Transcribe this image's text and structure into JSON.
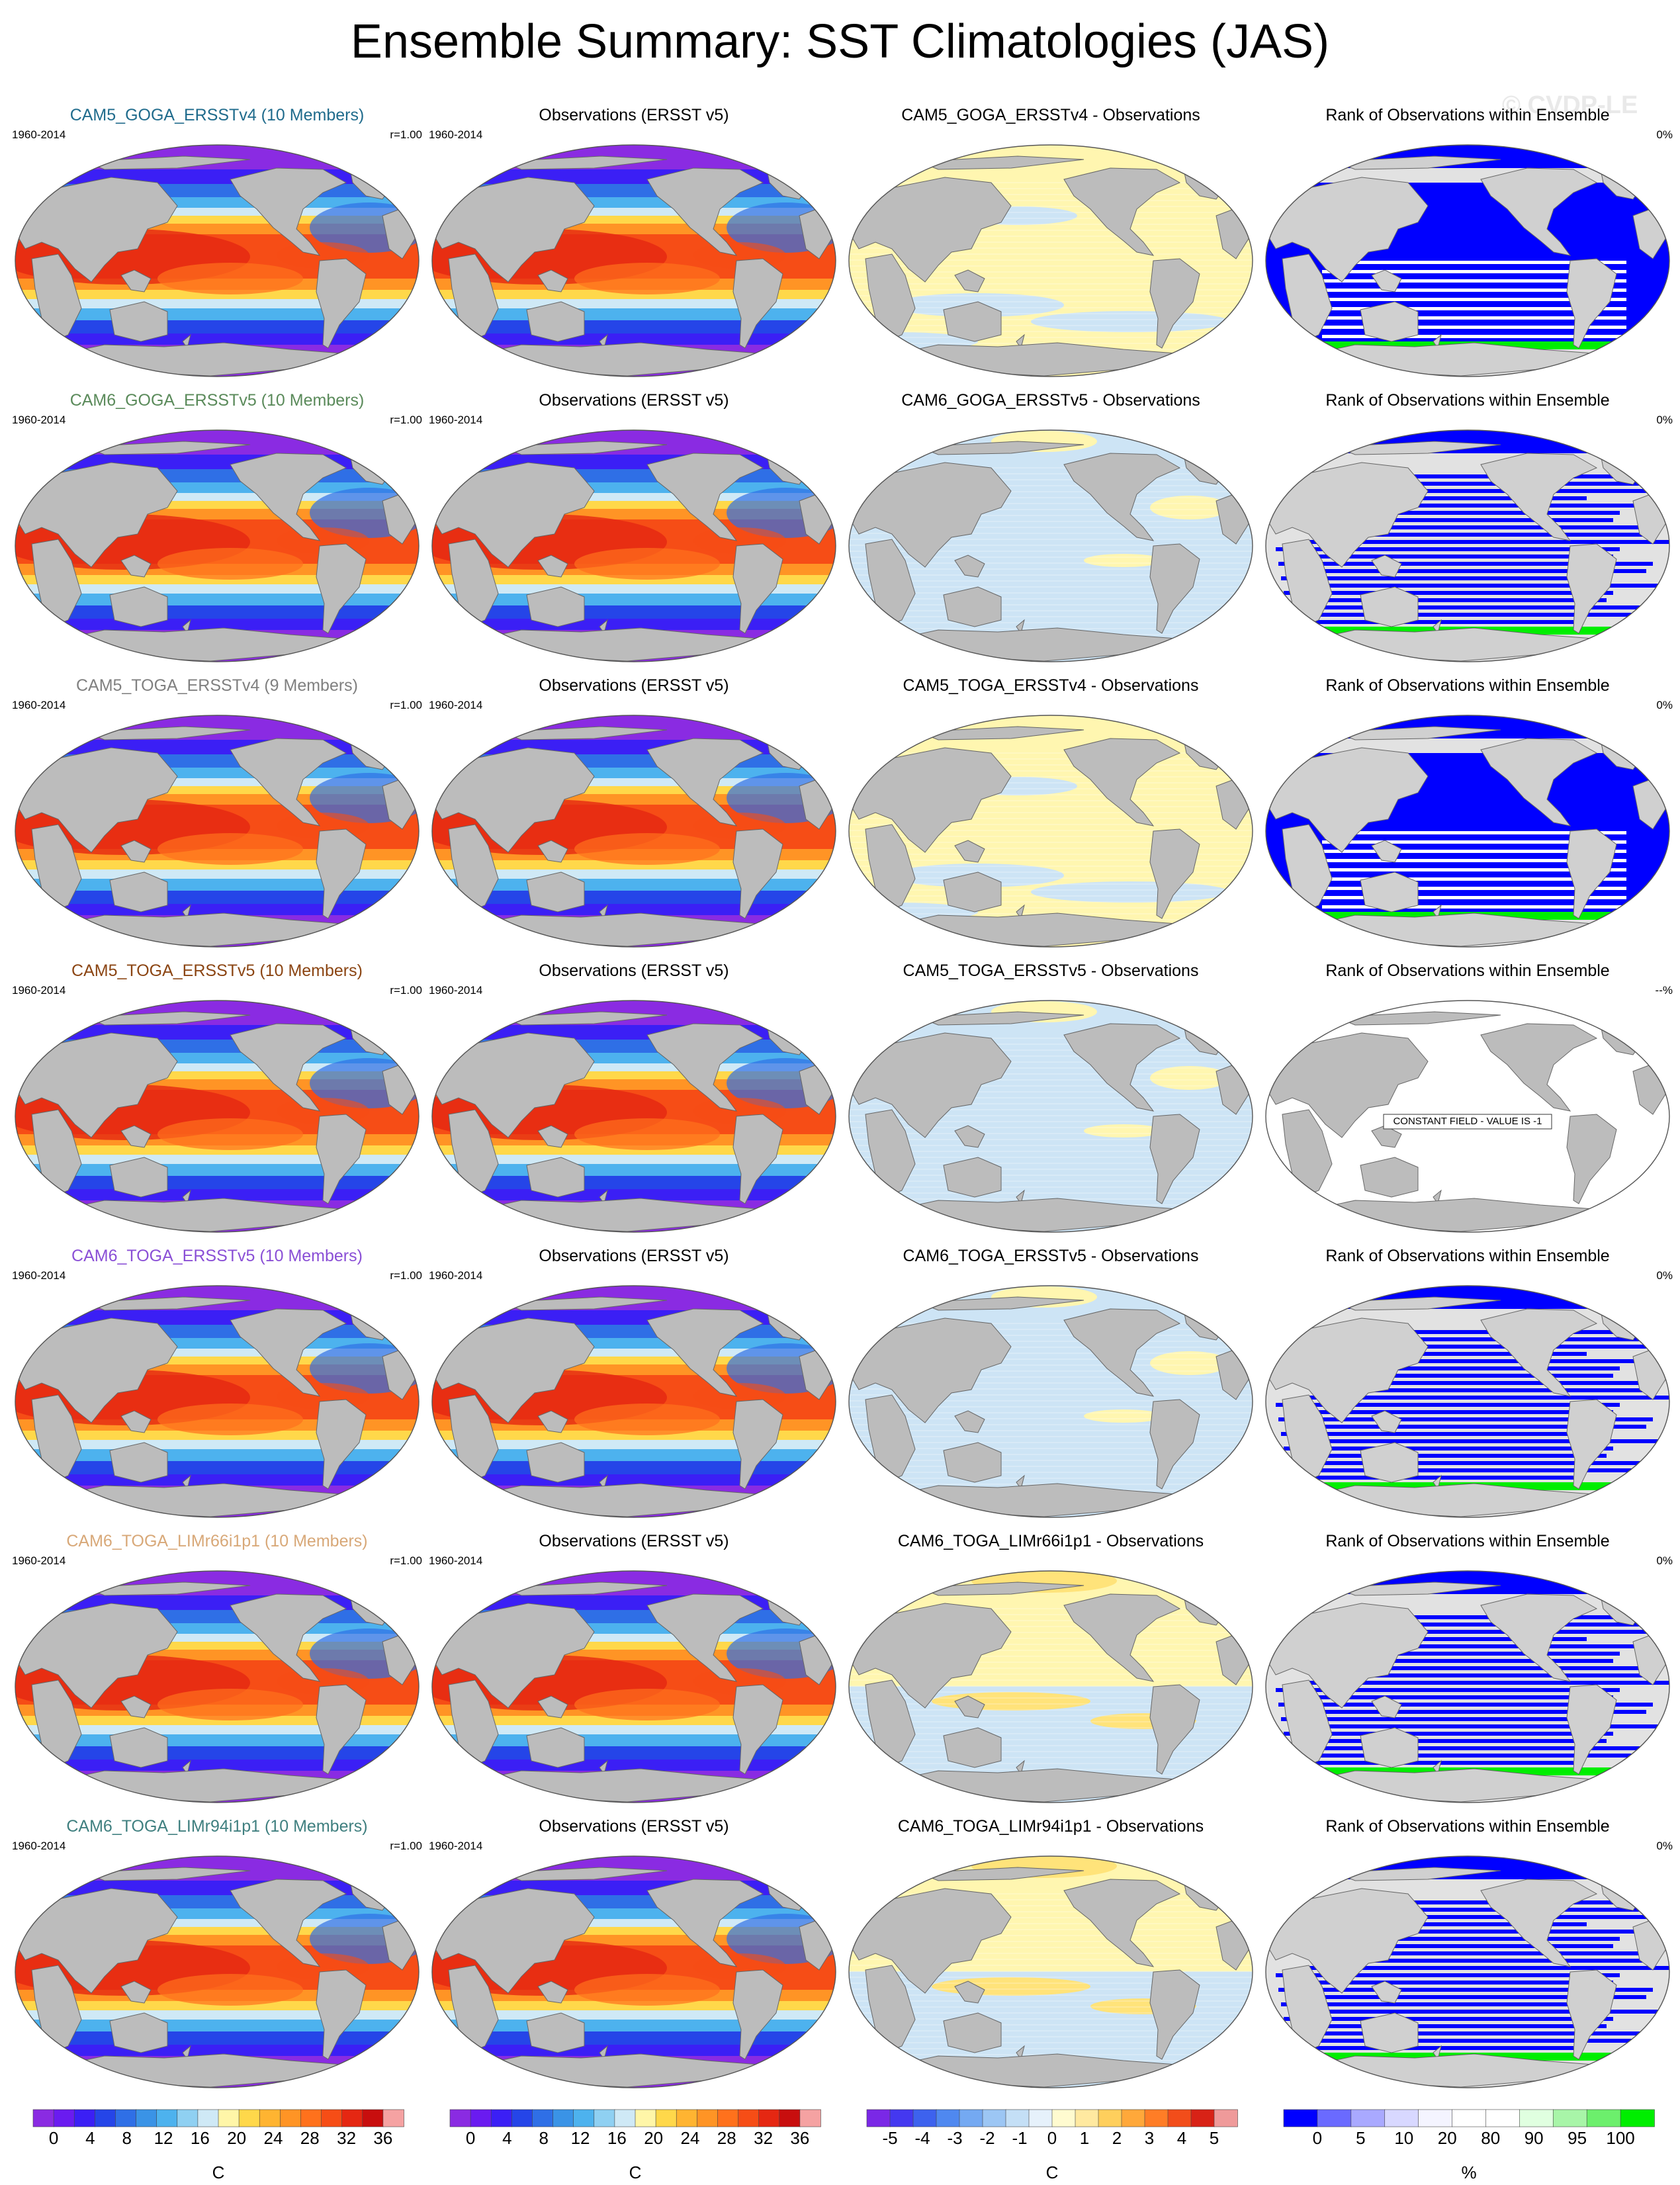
{
  "title": "Ensemble Summary: SST Climatologies (JAS)",
  "watermark": "© CVDP-LE",
  "rows": [
    {
      "model": "CAM5_GOGA_ERSSTv4 (10 Members)",
      "model_color": "#1f6b8c",
      "period": "1960-2014",
      "r": "r=1.00",
      "obs": "Observations (ERSST v5)",
      "diff": "CAM5_GOGA_ERSSTv4 - Observations",
      "rank_title": "Rank of Observations within Ensemble",
      "rank_pct": "0%",
      "bias": "warm",
      "rank_pattern": "dense",
      "constant": ""
    },
    {
      "model": "CAM6_GOGA_ERSSTv5 (10 Members)",
      "model_color": "#5a8a5a",
      "period": "1960-2014",
      "r": "r=1.00",
      "obs": "Observations (ERSST v5)",
      "diff": "CAM6_GOGA_ERSSTv5 - Observations",
      "rank_title": "Rank of Observations within Ensemble",
      "rank_pct": "0%",
      "bias": "cool",
      "rank_pattern": "striped",
      "constant": ""
    },
    {
      "model": "CAM5_TOGA_ERSSTv4 (9 Members)",
      "model_color": "#808080",
      "period": "1960-2014",
      "r": "r=1.00",
      "obs": "Observations (ERSST v5)",
      "diff": "CAM5_TOGA_ERSSTv4 - Observations",
      "rank_title": "Rank of Observations within Ensemble",
      "rank_pct": "0%",
      "bias": "warm",
      "rank_pattern": "dense",
      "constant": ""
    },
    {
      "model": "CAM5_TOGA_ERSSTv5 (10 Members)",
      "model_color": "#8b4513",
      "period": "1960-2014",
      "r": "r=1.00",
      "obs": "Observations (ERSST v5)",
      "diff": "CAM5_TOGA_ERSSTv5 - Observations",
      "rank_title": "Rank of Observations within Ensemble",
      "rank_pct": "--%",
      "bias": "cool",
      "rank_pattern": "none",
      "constant": "CONSTANT FIELD - VALUE IS -1"
    },
    {
      "model": "CAM6_TOGA_ERSSTv5 (10 Members)",
      "model_color": "#8a4fd6",
      "period": "1960-2014",
      "r": "r=1.00",
      "obs": "Observations (ERSST v5)",
      "diff": "CAM6_TOGA_ERSSTv5 - Observations",
      "rank_title": "Rank of Observations within Ensemble",
      "rank_pct": "0%",
      "bias": "cool",
      "rank_pattern": "striped",
      "constant": ""
    },
    {
      "model": "CAM6_TOGA_LIMr66i1p1 (10 Members)",
      "model_color": "#d8a878",
      "period": "1960-2014",
      "r": "r=1.00",
      "obs": "Observations (ERSST v5)",
      "diff": "CAM6_TOGA_LIMr66i1p1 - Observations",
      "rank_title": "Rank of Observations within Ensemble",
      "rank_pct": "0%",
      "bias": "mixed",
      "rank_pattern": "striped",
      "constant": ""
    },
    {
      "model": "CAM6_TOGA_LIMr94i1p1 (10 Members)",
      "model_color": "#3f7f7f",
      "period": "1960-2014",
      "r": "r=1.00",
      "obs": "Observations (ERSST v5)",
      "diff": "CAM6_TOGA_LIMr94i1p1 - Observations",
      "rank_title": "Rank of Observations within Ensemble",
      "rank_pct": "0%",
      "bias": "mixed",
      "rank_pattern": "striped",
      "constant": ""
    }
  ],
  "colorbars": [
    {
      "label": "C",
      "colors": [
        "#8a2be2",
        "#6a1bf0",
        "#3b1ff5",
        "#2545e8",
        "#2f6fe6",
        "#3a93e6",
        "#4db2ee",
        "#8fd0f2",
        "#cfe9f6",
        "#fff6a8",
        "#ffd84a",
        "#ffb431",
        "#ff9425",
        "#ff711c",
        "#f64d16",
        "#e52712",
        "#c80e0e",
        "#f5a2a2"
      ],
      "ticks": [
        "0",
        "4",
        "8",
        "12",
        "16",
        "20",
        "24",
        "28",
        "32",
        "36"
      ]
    },
    {
      "label": "C",
      "colors": [
        "#8a2be2",
        "#6a1bf0",
        "#3b1ff5",
        "#2545e8",
        "#2f6fe6",
        "#3a93e6",
        "#4db2ee",
        "#8fd0f2",
        "#cfe9f6",
        "#fff6a8",
        "#ffd84a",
        "#ffb431",
        "#ff9425",
        "#ff711c",
        "#f64d16",
        "#e52712",
        "#c80e0e",
        "#f5a2a2"
      ],
      "ticks": [
        "0",
        "4",
        "8",
        "12",
        "16",
        "20",
        "24",
        "28",
        "32",
        "36"
      ]
    },
    {
      "label": "C",
      "colors": [
        "#7a28e6",
        "#4438f0",
        "#3d62ee",
        "#4f88f0",
        "#74a9f2",
        "#9cc6f4",
        "#c4dff6",
        "#e6f1fb",
        "#fffbd0",
        "#ffe9a0",
        "#ffcf5c",
        "#ffa83a",
        "#ff7d26",
        "#f24d1a",
        "#d82216",
        "#ef9a9a"
      ],
      "ticks": [
        "-5",
        "-4",
        "-3",
        "-2",
        "-1",
        "0",
        "1",
        "2",
        "3",
        "4",
        "5"
      ]
    },
    {
      "label": "%",
      "colors": [
        "#0000ff",
        "#6a6aff",
        "#a9a9ff",
        "#d8d8ff",
        "#f4f4ff",
        "#ffffff",
        "#ffffff",
        "#e0ffe0",
        "#a8f5a8",
        "#6cef6c",
        "#00ee00"
      ],
      "ticks": [
        "0",
        "5",
        "10",
        "20",
        "80",
        "90",
        "95",
        "100"
      ]
    }
  ]
}
